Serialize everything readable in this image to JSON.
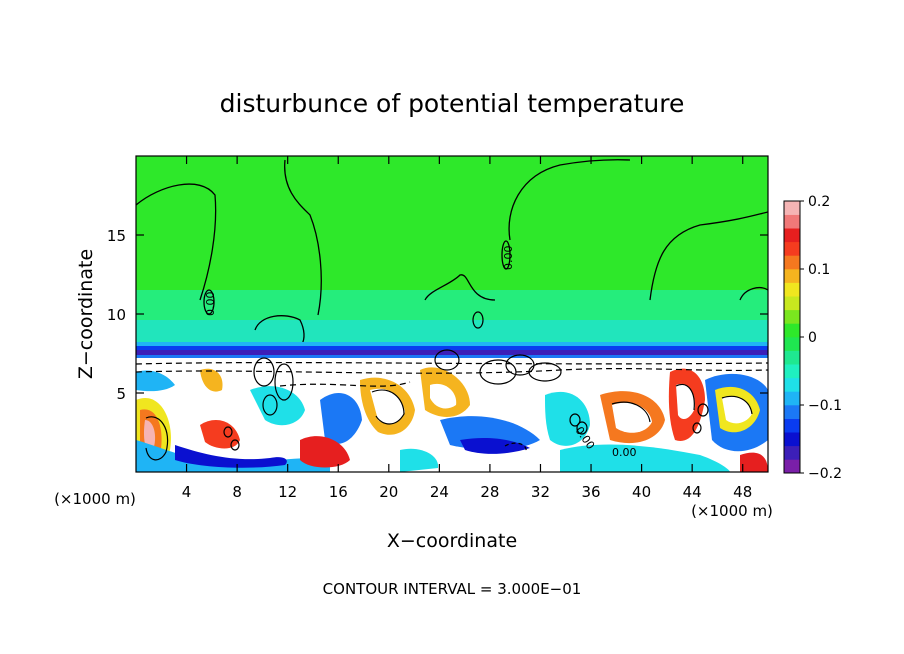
{
  "chart_data": {
    "type": "heatmap",
    "title": "disturbunce of potential temperature",
    "xlabel": "X−coordinate",
    "ylabel": "Z−coordinate",
    "x_unit_left": "(×1000 m)",
    "x_unit_right": "(×1000 m)",
    "xlim": [
      0,
      50
    ],
    "ylim": [
      0,
      20
    ],
    "x_ticks": [
      4,
      8,
      12,
      16,
      20,
      24,
      28,
      32,
      36,
      40,
      44,
      48
    ],
    "x_tick_labels": [
      "4",
      "8",
      "12",
      "16",
      "20",
      "24",
      "28",
      "32",
      "36",
      "40",
      "44",
      "48"
    ],
    "y_ticks": [
      5,
      10,
      15
    ],
    "y_tick_labels": [
      "5",
      "10",
      "15"
    ],
    "footer": "CONTOUR INTERVAL = 3.000E−01",
    "colorbar": {
      "min": -0.2,
      "max": 0.2,
      "ticks": [
        -0.2,
        -0.1,
        0,
        0.1,
        0.2
      ],
      "tick_labels": [
        "−0.2",
        "−0.1",
        "0",
        "0.1",
        "0.2"
      ],
      "colors": [
        "#7a1fa8",
        "#3c1fb8",
        "#0a10d0",
        "#0a3cf0",
        "#1b78f5",
        "#1fb4f5",
        "#1fe0e8",
        "#1ff0c0",
        "#1fe890",
        "#1fe650",
        "#2ee82a",
        "#7ae61f",
        "#c8e81f",
        "#f0e61f",
        "#f5b41f",
        "#f5781f",
        "#f53c1f",
        "#e61f1f",
        "#f07878",
        "#f5b4b4"
      ]
    },
    "contour_labels": [
      "0.00",
      "0.00",
      "0.00",
      "0.00"
    ]
  }
}
